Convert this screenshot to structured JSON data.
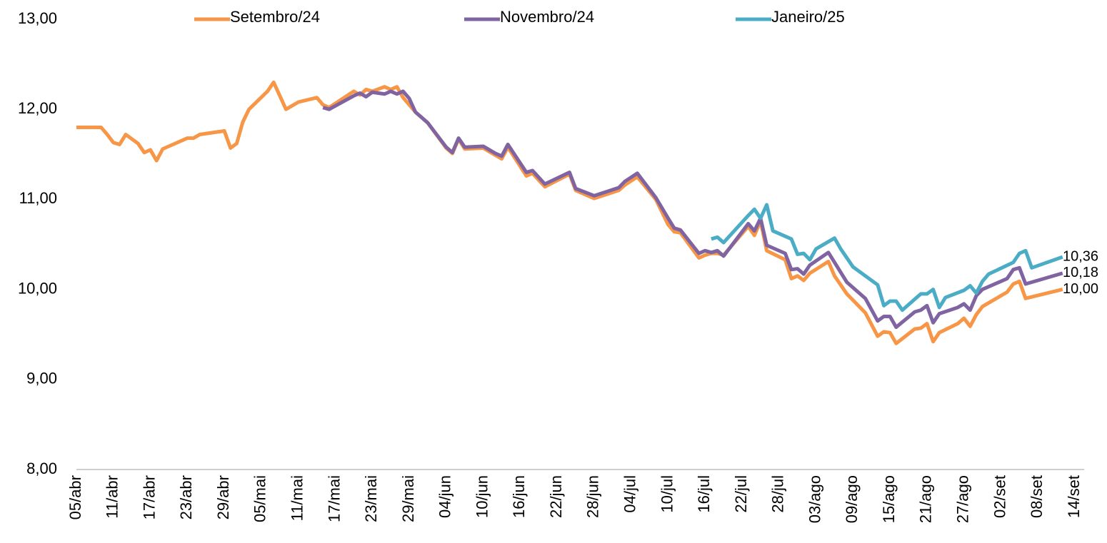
{
  "chart_data": {
    "type": "line",
    "ylim": [
      8,
      13
    ],
    "yticks": [
      {
        "value": 8,
        "label": "8,00"
      },
      {
        "value": 9,
        "label": "9,00"
      },
      {
        "value": 10,
        "label": "10,00"
      },
      {
        "value": 11,
        "label": "11,00"
      },
      {
        "value": 12,
        "label": "12,00"
      },
      {
        "value": 13,
        "label": "13,00"
      }
    ],
    "xlim": [
      0,
      163.5
    ],
    "xticks": [
      {
        "value": 0,
        "label": "05/abr"
      },
      {
        "value": 6,
        "label": "11/abr"
      },
      {
        "value": 12,
        "label": "17/abr"
      },
      {
        "value": 18,
        "label": "23/abr"
      },
      {
        "value": 24,
        "label": "29/abr"
      },
      {
        "value": 30,
        "label": "05/mai"
      },
      {
        "value": 36,
        "label": "11/mai"
      },
      {
        "value": 42,
        "label": "17/mai"
      },
      {
        "value": 48,
        "label": "23/mai"
      },
      {
        "value": 54,
        "label": "29/mai"
      },
      {
        "value": 60,
        "label": "04/jun"
      },
      {
        "value": 66,
        "label": "10/jun"
      },
      {
        "value": 72,
        "label": "16/jun"
      },
      {
        "value": 78,
        "label": "22/jun"
      },
      {
        "value": 84,
        "label": "28/jun"
      },
      {
        "value": 90,
        "label": "04/jul"
      },
      {
        "value": 96,
        "label": "10/jul"
      },
      {
        "value": 102,
        "label": "16/jul"
      },
      {
        "value": 108,
        "label": "22/jul"
      },
      {
        "value": 114,
        "label": "28/jul"
      },
      {
        "value": 120,
        "label": "03/ago"
      },
      {
        "value": 126,
        "label": "09/ago"
      },
      {
        "value": 132,
        "label": "15/ago"
      },
      {
        "value": 138,
        "label": "21/ago"
      },
      {
        "value": 144,
        "label": "27/ago"
      },
      {
        "value": 150,
        "label": "02/set"
      },
      {
        "value": 156,
        "label": "08/set"
      },
      {
        "value": 162,
        "label": "14/set"
      }
    ],
    "legend": "top",
    "series": [
      {
        "name": "Setembro/24",
        "color": "#f79646",
        "last_label": "10,00",
        "x": [
          0,
          4,
          5,
          6,
          7,
          8,
          10,
          11,
          12,
          13,
          14,
          18,
          19,
          20,
          24,
          25,
          26,
          27,
          28,
          31,
          32,
          34,
          36,
          39,
          40,
          41,
          45,
          46,
          47,
          48,
          50,
          51,
          52,
          53,
          55,
          57,
          60,
          61,
          62,
          63,
          66,
          68,
          69,
          70,
          73,
          74,
          76,
          80,
          81,
          84,
          88,
          89,
          91,
          94,
          96,
          97,
          98,
          101,
          102,
          103,
          104,
          105,
          109,
          110,
          111,
          112,
          115,
          116,
          117,
          118,
          119,
          122,
          123,
          125,
          128,
          130,
          131,
          132,
          133,
          136,
          137,
          138,
          139,
          140,
          143,
          144,
          145,
          146,
          147,
          151,
          152,
          153,
          154,
          160
        ],
        "values": [
          11.8,
          11.8,
          11.72,
          11.63,
          11.61,
          11.72,
          11.62,
          11.52,
          11.55,
          11.43,
          11.56,
          11.68,
          11.68,
          11.72,
          11.76,
          11.57,
          11.62,
          11.86,
          12.0,
          12.2,
          12.3,
          12.0,
          12.08,
          12.13,
          12.05,
          12.02,
          12.2,
          12.16,
          12.22,
          12.2,
          12.25,
          12.22,
          12.25,
          12.13,
          11.97,
          11.85,
          11.57,
          11.51,
          11.67,
          11.56,
          11.57,
          11.49,
          11.45,
          11.58,
          11.26,
          11.29,
          11.14,
          11.28,
          11.1,
          11.01,
          11.1,
          11.16,
          11.25,
          11.0,
          10.72,
          10.64,
          10.63,
          10.35,
          10.38,
          10.4,
          10.4,
          10.38,
          10.7,
          10.6,
          10.76,
          10.43,
          10.33,
          10.12,
          10.15,
          10.1,
          10.18,
          10.31,
          10.15,
          9.95,
          9.74,
          9.48,
          9.53,
          9.52,
          9.4,
          9.56,
          9.57,
          9.62,
          9.42,
          9.52,
          9.62,
          9.68,
          9.59,
          9.72,
          9.81,
          9.97,
          10.06,
          10.09,
          9.9,
          10.0
        ]
      },
      {
        "name": "Novembro/24",
        "color": "#8064a2",
        "last_label": "10,18",
        "x": [
          40,
          41,
          45,
          46,
          47,
          48,
          50,
          51,
          52,
          53,
          54,
          55,
          57,
          60,
          61,
          62,
          63,
          66,
          68,
          69,
          70,
          73,
          74,
          76,
          80,
          81,
          84,
          88,
          89,
          91,
          94,
          96,
          97,
          98,
          101,
          102,
          103,
          104,
          105,
          109,
          110,
          111,
          112,
          115,
          116,
          117,
          118,
          119,
          122,
          123,
          125,
          128,
          130,
          131,
          132,
          133,
          136,
          137,
          138,
          139,
          140,
          143,
          144,
          145,
          146,
          147,
          151,
          152,
          153,
          154,
          160
        ],
        "values": [
          12.02,
          12.0,
          12.15,
          12.18,
          12.14,
          12.19,
          12.17,
          12.2,
          12.17,
          12.2,
          12.12,
          11.97,
          11.85,
          11.58,
          11.52,
          11.68,
          11.58,
          11.59,
          11.51,
          11.48,
          11.61,
          11.3,
          11.32,
          11.17,
          11.3,
          11.12,
          11.04,
          11.13,
          11.2,
          11.29,
          11.02,
          10.79,
          10.68,
          10.66,
          10.4,
          10.43,
          10.41,
          10.43,
          10.37,
          10.73,
          10.65,
          10.79,
          10.49,
          10.4,
          10.22,
          10.23,
          10.17,
          10.27,
          10.41,
          10.3,
          10.08,
          9.9,
          9.65,
          9.7,
          9.7,
          9.58,
          9.75,
          9.77,
          9.82,
          9.63,
          9.73,
          9.8,
          9.84,
          9.77,
          9.93,
          10.0,
          10.12,
          10.22,
          10.24,
          10.06,
          10.18
        ]
      },
      {
        "name": "Janeiro/25",
        "color": "#4bacc6",
        "last_label": "10,36",
        "x": [
          103,
          104,
          105,
          109,
          110,
          111,
          112,
          113,
          116,
          117,
          118,
          119,
          120,
          123,
          124,
          126,
          130,
          131,
          132,
          133,
          134,
          137,
          138,
          139,
          140,
          141,
          144,
          145,
          146,
          147,
          148,
          152,
          153,
          154,
          155,
          160
        ],
        "values": [
          10.56,
          10.58,
          10.52,
          10.82,
          10.89,
          10.79,
          10.94,
          10.65,
          10.56,
          10.39,
          10.4,
          10.33,
          10.45,
          10.57,
          10.45,
          10.25,
          10.05,
          9.82,
          9.87,
          9.87,
          9.77,
          9.95,
          9.95,
          10.0,
          9.8,
          9.91,
          9.99,
          10.04,
          9.96,
          10.09,
          10.17,
          10.3,
          10.4,
          10.43,
          10.24,
          10.36
        ]
      }
    ]
  }
}
